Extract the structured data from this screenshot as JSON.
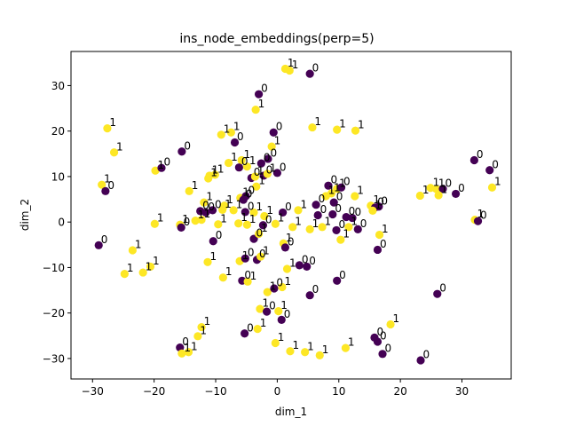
{
  "chart_data": {
    "type": "scatter",
    "title": "ins_node_embeddings(perp=5)",
    "xlabel": "dim_1",
    "ylabel": "dim_2",
    "xlim": [
      -33.5,
      38.0
    ],
    "ylim": [
      -34.5,
      37.5
    ],
    "xticks": [
      -30,
      -20,
      -10,
      0,
      10,
      20,
      30
    ],
    "yticks": [
      -30,
      -20,
      -10,
      0,
      10,
      20,
      30
    ],
    "grid": false,
    "legend": "none",
    "colors": {
      "0": "#440154",
      "1": "#fde725"
    },
    "points": [
      {
        "x": 1.3,
        "y": 33.7,
        "label": "1"
      },
      {
        "x": 2.0,
        "y": 33.3,
        "label": "1"
      },
      {
        "x": 5.3,
        "y": 32.6,
        "label": "0"
      },
      {
        "x": -3.0,
        "y": 28.1,
        "label": "0"
      },
      {
        "x": -3.5,
        "y": 24.7,
        "label": "1"
      },
      {
        "x": -27.6,
        "y": 20.6,
        "label": "1"
      },
      {
        "x": 5.7,
        "y": 20.8,
        "label": "1"
      },
      {
        "x": 9.7,
        "y": 20.3,
        "label": "1"
      },
      {
        "x": 12.7,
        "y": 20.1,
        "label": "1"
      },
      {
        "x": -0.6,
        "y": 19.7,
        "label": "0"
      },
      {
        "x": -9.1,
        "y": 19.2,
        "label": "1"
      },
      {
        "x": -7.5,
        "y": 19.7,
        "label": "1"
      },
      {
        "x": -6.9,
        "y": 17.5,
        "label": "0"
      },
      {
        "x": -0.9,
        "y": 16.6,
        "label": "1"
      },
      {
        "x": -26.5,
        "y": 15.3,
        "label": "1"
      },
      {
        "x": -15.5,
        "y": 15.5,
        "label": "0"
      },
      {
        "x": -1.5,
        "y": 13.9,
        "label": "0"
      },
      {
        "x": -2.6,
        "y": 12.9,
        "label": "0"
      },
      {
        "x": -7.9,
        "y": 13.0,
        "label": "1"
      },
      {
        "x": -5.8,
        "y": 13.6,
        "label": "1"
      },
      {
        "x": -6.2,
        "y": 12.0,
        "label": "0"
      },
      {
        "x": -4.9,
        "y": 12.2,
        "label": "1"
      },
      {
        "x": 32.0,
        "y": 13.6,
        "label": "0"
      },
      {
        "x": -19.8,
        "y": 11.3,
        "label": "1"
      },
      {
        "x": -18.8,
        "y": 11.9,
        "label": "0"
      },
      {
        "x": -11.0,
        "y": 10.2,
        "label": "1"
      },
      {
        "x": -10.1,
        "y": 10.4,
        "label": "1"
      },
      {
        "x": -11.2,
        "y": 9.6,
        "label": "1"
      },
      {
        "x": -4.2,
        "y": 9.7,
        "label": "0"
      },
      {
        "x": -3.6,
        "y": 10.0,
        "label": "1"
      },
      {
        "x": -2.2,
        "y": 10.2,
        "label": "0"
      },
      {
        "x": -1.6,
        "y": 10.6,
        "label": "1"
      },
      {
        "x": 0.0,
        "y": 10.8,
        "label": "0"
      },
      {
        "x": -28.5,
        "y": 8.2,
        "label": "1"
      },
      {
        "x": -27.9,
        "y": 6.8,
        "label": "0"
      },
      {
        "x": -14.3,
        "y": 6.8,
        "label": "1"
      },
      {
        "x": -3.4,
        "y": 7.8,
        "label": "1"
      },
      {
        "x": 8.3,
        "y": 8.0,
        "label": "0"
      },
      {
        "x": 9.7,
        "y": 7.3,
        "label": "1"
      },
      {
        "x": 8.8,
        "y": 6.3,
        "label": "1"
      },
      {
        "x": 10.4,
        "y": 7.6,
        "label": "0"
      },
      {
        "x": 12.6,
        "y": 5.7,
        "label": "1"
      },
      {
        "x": 7.9,
        "y": 5.7,
        "label": "1"
      },
      {
        "x": 24.9,
        "y": 7.5,
        "label": "1"
      },
      {
        "x": 25.8,
        "y": 7.3,
        "label": "1"
      },
      {
        "x": 26.9,
        "y": 7.3,
        "label": "0"
      },
      {
        "x": 29.0,
        "y": 6.2,
        "label": "0"
      },
      {
        "x": 23.2,
        "y": 5.8,
        "label": "1"
      },
      {
        "x": 26.2,
        "y": 5.9,
        "label": "1"
      },
      {
        "x": 34.9,
        "y": 7.6,
        "label": "1"
      },
      {
        "x": 34.5,
        "y": 11.4,
        "label": "0"
      },
      {
        "x": -11.9,
        "y": 4.3,
        "label": "1"
      },
      {
        "x": -8.6,
        "y": 3.6,
        "label": "1"
      },
      {
        "x": -6.0,
        "y": 5.3,
        "label": "1"
      },
      {
        "x": -5.5,
        "y": 4.9,
        "label": "0"
      },
      {
        "x": -5.1,
        "y": 5.7,
        "label": "0"
      },
      {
        "x": 6.3,
        "y": 3.8,
        "label": "0"
      },
      {
        "x": 9.2,
        "y": 4.3,
        "label": "0"
      },
      {
        "x": 15.2,
        "y": 3.6,
        "label": "1"
      },
      {
        "x": 15.9,
        "y": 3.2,
        "label": "0"
      },
      {
        "x": 16.5,
        "y": 3.4,
        "label": "0"
      },
      {
        "x": 15.5,
        "y": 2.5,
        "label": "1"
      },
      {
        "x": -12.5,
        "y": 2.4,
        "label": "0"
      },
      {
        "x": -11.6,
        "y": 2.1,
        "label": "0"
      },
      {
        "x": -10.5,
        "y": 2.6,
        "label": "0"
      },
      {
        "x": -8.9,
        "y": 2.7,
        "label": "1"
      },
      {
        "x": -7.1,
        "y": 2.6,
        "label": "1"
      },
      {
        "x": -5.2,
        "y": 2.2,
        "label": "0"
      },
      {
        "x": -3.8,
        "y": 2.1,
        "label": "1"
      },
      {
        "x": -2.1,
        "y": 1.3,
        "label": "1"
      },
      {
        "x": 0.9,
        "y": 2.1,
        "label": "0"
      },
      {
        "x": 3.4,
        "y": 2.6,
        "label": "1"
      },
      {
        "x": 6.6,
        "y": 1.5,
        "label": "0"
      },
      {
        "x": 9.0,
        "y": 1.7,
        "label": "0"
      },
      {
        "x": 11.2,
        "y": 1.1,
        "label": "0"
      },
      {
        "x": 12.2,
        "y": 0.9,
        "label": "0"
      },
      {
        "x": 32.1,
        "y": 0.5,
        "label": "1"
      },
      {
        "x": 32.6,
        "y": 0.2,
        "label": "0"
      },
      {
        "x": -15.8,
        "y": -0.6,
        "label": "1"
      },
      {
        "x": -19.9,
        "y": -0.4,
        "label": "1"
      },
      {
        "x": -15.6,
        "y": -1.2,
        "label": "0"
      },
      {
        "x": -13.3,
        "y": 0.3,
        "label": "1"
      },
      {
        "x": -12.3,
        "y": 0.5,
        "label": "1"
      },
      {
        "x": -9.6,
        "y": -0.5,
        "label": "1"
      },
      {
        "x": -6.3,
        "y": -0.3,
        "label": "1"
      },
      {
        "x": -4.9,
        "y": -0.6,
        "label": "1"
      },
      {
        "x": -2.3,
        "y": -0.7,
        "label": "0"
      },
      {
        "x": -0.3,
        "y": -0.4,
        "label": "1"
      },
      {
        "x": 2.5,
        "y": -1.1,
        "label": "1"
      },
      {
        "x": 5.3,
        "y": -1.6,
        "label": "1"
      },
      {
        "x": 7.3,
        "y": -1.1,
        "label": "1"
      },
      {
        "x": 9.6,
        "y": -1.8,
        "label": "0"
      },
      {
        "x": 11.6,
        "y": -1.1,
        "label": "1"
      },
      {
        "x": 13.1,
        "y": -1.6,
        "label": "0"
      },
      {
        "x": 16.6,
        "y": -2.8,
        "label": "1"
      },
      {
        "x": -29.0,
        "y": -5.1,
        "label": "0"
      },
      {
        "x": -10.4,
        "y": -4.2,
        "label": "0"
      },
      {
        "x": -3.8,
        "y": -3.7,
        "label": "0"
      },
      {
        "x": -3.0,
        "y": -2.6,
        "label": "1"
      },
      {
        "x": 1.0,
        "y": -4.7,
        "label": "1"
      },
      {
        "x": 1.3,
        "y": -5.6,
        "label": "0"
      },
      {
        "x": 10.3,
        "y": -3.9,
        "label": "1"
      },
      {
        "x": 16.3,
        "y": -6.1,
        "label": "0"
      },
      {
        "x": -23.5,
        "y": -6.2,
        "label": "1"
      },
      {
        "x": -11.3,
        "y": -8.8,
        "label": "1"
      },
      {
        "x": -6.1,
        "y": -8.6,
        "label": "1"
      },
      {
        "x": -5.2,
        "y": -8.0,
        "label": "0"
      },
      {
        "x": -3.3,
        "y": -8.3,
        "label": "0"
      },
      {
        "x": -2.7,
        "y": -7.6,
        "label": "1"
      },
      {
        "x": 1.6,
        "y": -10.3,
        "label": "1"
      },
      {
        "x": 3.6,
        "y": -9.5,
        "label": "0"
      },
      {
        "x": 4.8,
        "y": -9.8,
        "label": "0"
      },
      {
        "x": -20.6,
        "y": -9.8,
        "label": "1"
      },
      {
        "x": -21.8,
        "y": -11.1,
        "label": "1"
      },
      {
        "x": -24.8,
        "y": -11.4,
        "label": "1"
      },
      {
        "x": -8.8,
        "y": -12.2,
        "label": "1"
      },
      {
        "x": -5.7,
        "y": -12.9,
        "label": "0"
      },
      {
        "x": -4.8,
        "y": -13.1,
        "label": "1"
      },
      {
        "x": 9.7,
        "y": -12.9,
        "label": "0"
      },
      {
        "x": -1.6,
        "y": -15.4,
        "label": "1"
      },
      {
        "x": -0.5,
        "y": -14.6,
        "label": "0"
      },
      {
        "x": 0.8,
        "y": -14.3,
        "label": "1"
      },
      {
        "x": 5.3,
        "y": -16.1,
        "label": "0"
      },
      {
        "x": 26.0,
        "y": -15.8,
        "label": "0"
      },
      {
        "x": -2.8,
        "y": -19.1,
        "label": "1"
      },
      {
        "x": -1.7,
        "y": -19.7,
        "label": "0"
      },
      {
        "x": 0.2,
        "y": -19.6,
        "label": "1"
      },
      {
        "x": 0.7,
        "y": -21.5,
        "label": "0"
      },
      {
        "x": 18.4,
        "y": -22.5,
        "label": "1"
      },
      {
        "x": -12.3,
        "y": -23.1,
        "label": "1"
      },
      {
        "x": -3.2,
        "y": -23.5,
        "label": "1"
      },
      {
        "x": -12.9,
        "y": -25.1,
        "label": "1"
      },
      {
        "x": -5.3,
        "y": -24.5,
        "label": "0"
      },
      {
        "x": 15.8,
        "y": -25.4,
        "label": "0"
      },
      {
        "x": 16.3,
        "y": -26.3,
        "label": "0"
      },
      {
        "x": -0.3,
        "y": -26.6,
        "label": "1"
      },
      {
        "x": -15.8,
        "y": -27.6,
        "label": "0"
      },
      {
        "x": -15.5,
        "y": -28.9,
        "label": "1"
      },
      {
        "x": -14.4,
        "y": -28.6,
        "label": "1"
      },
      {
        "x": 2.1,
        "y": -28.4,
        "label": "1"
      },
      {
        "x": 4.5,
        "y": -28.6,
        "label": "1"
      },
      {
        "x": 6.9,
        "y": -29.3,
        "label": "1"
      },
      {
        "x": 11.1,
        "y": -27.7,
        "label": "1"
      },
      {
        "x": 17.1,
        "y": -29.0,
        "label": "0"
      },
      {
        "x": 23.3,
        "y": -30.4,
        "label": "0"
      }
    ]
  }
}
